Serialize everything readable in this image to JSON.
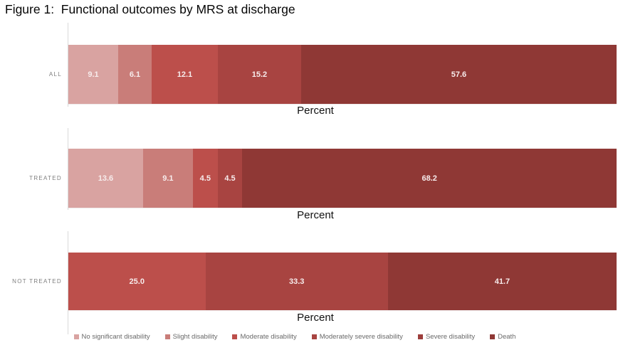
{
  "chart_data": {
    "type": "bar",
    "orientation": "horizontal",
    "stacked": true,
    "title": "Figure 1:  Functional outcomes by MRS at discharge",
    "xlabel": "Percent",
    "xlabel_shown_under_each_bar": true,
    "categories": [
      "ALL",
      "TREATED",
      "NOT TREATED"
    ],
    "series": [
      {
        "name": "No significant disability",
        "color": "#d9a3a1",
        "values": [
          9.1,
          13.6,
          0
        ]
      },
      {
        "name": "Slight disability",
        "color": "#c97d79",
        "values": [
          6.1,
          9.1,
          0
        ]
      },
      {
        "name": "Moderate disability",
        "color": "#bc4f4b",
        "values": [
          12.1,
          4.5,
          25.0
        ]
      },
      {
        "name": "Moderately severe disability",
        "color": "#a84441",
        "values": [
          15.2,
          4.5,
          33.3
        ]
      },
      {
        "name": "Severe disability",
        "color": "#9c3e3b",
        "values": [
          0,
          0,
          0
        ]
      },
      {
        "name": "Death",
        "color": "#8f3835",
        "values": [
          57.6,
          68.2,
          41.7
        ]
      }
    ],
    "legend_position": "bottom",
    "grid": false,
    "value_labels": "inside-center",
    "value_label_color": "#f7ecec",
    "axis_line_color": "#d9d9d9"
  }
}
